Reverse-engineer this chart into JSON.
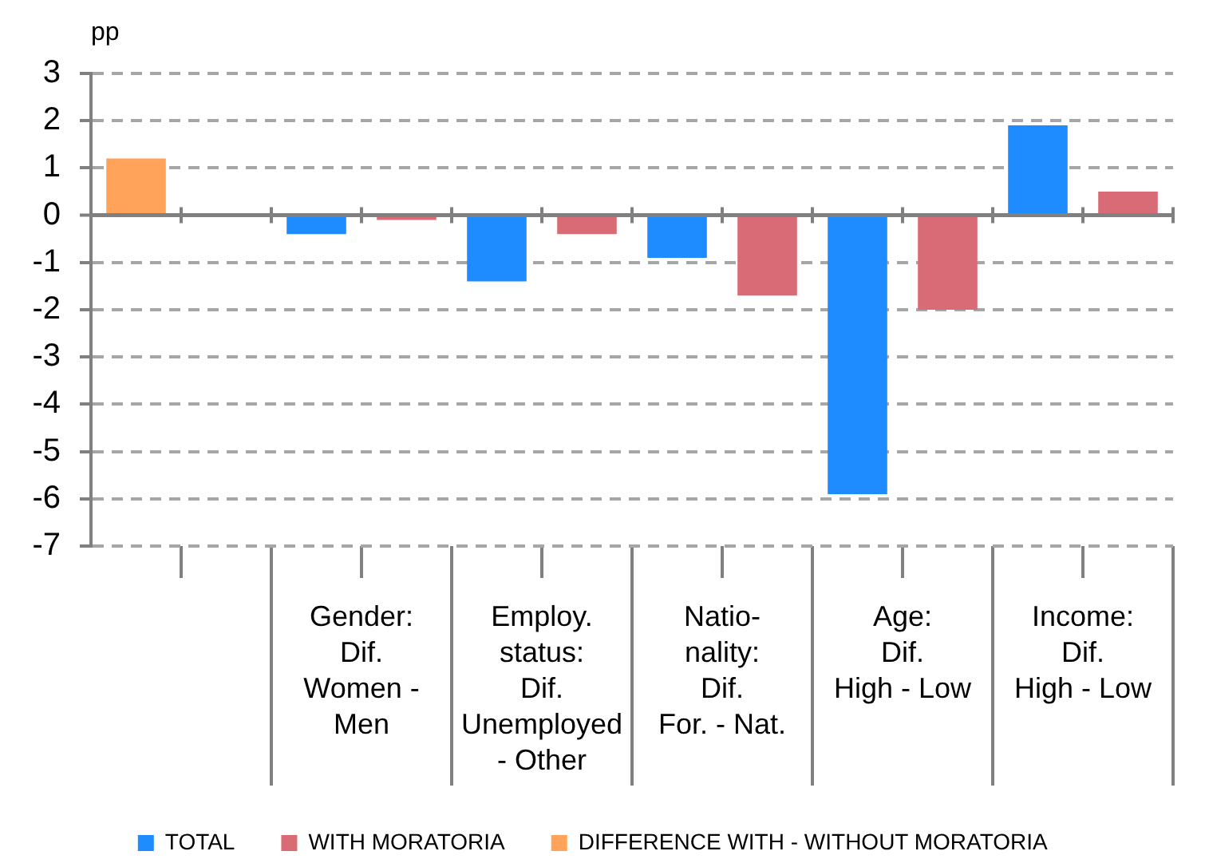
{
  "chart_data": {
    "type": "bar",
    "ylabel": "pp",
    "categories": [
      null,
      "Gender:\nDif.\nWomen -\nMen",
      "Employ.\nstatus:\nDif.\nUnemployed\n- Other",
      "Natio-\nnality:\nDif.\nFor. - Nat.",
      "Age:\nDif.\nHigh - Low",
      "Income:\nDif.\nHigh - Low"
    ],
    "series": [
      {
        "name": "TOTAL",
        "color": "#1e8cff",
        "values": [
          null,
          -0.4,
          -1.4,
          -0.9,
          -5.9,
          1.9
        ]
      },
      {
        "name": "WITH MORATORIA",
        "color": "#d96b77",
        "values": [
          null,
          -0.1,
          -0.4,
          -1.7,
          -2.0,
          0.5
        ]
      },
      {
        "name": "DIFFERENCE WITH - WITHOUT MORATORIA",
        "color": "#ffa35a",
        "values": [
          1.2,
          null,
          null,
          null,
          null,
          null
        ]
      }
    ],
    "ylim": [
      -7,
      3
    ],
    "yticks": [
      -7,
      -6,
      -5,
      -4,
      -3,
      -2,
      -1,
      0,
      1,
      2,
      3
    ],
    "grid": "y",
    "legend": "bottom"
  }
}
